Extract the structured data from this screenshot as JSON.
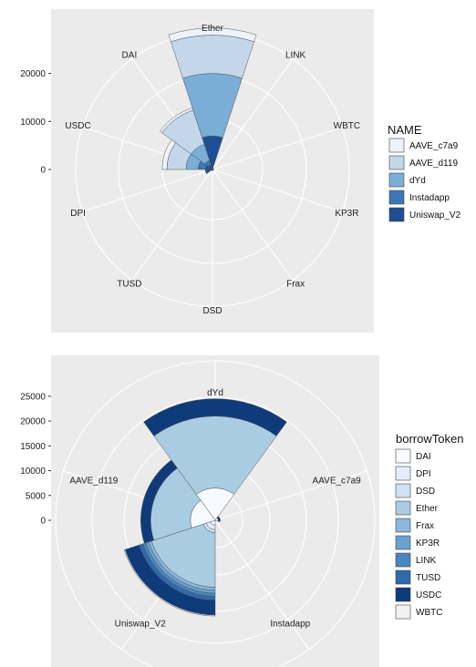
{
  "chart_data": [
    {
      "type": "polar-bar",
      "description_stack": "stacked bars in polar coordinates, one wedge per token",
      "categories": [
        "Ether",
        "LINK",
        "WBTC",
        "KP3R",
        "Frax",
        "DSD",
        "TUSD",
        "DPI",
        "USDC",
        "DAI"
      ],
      "yticks": [
        0,
        10000,
        20000
      ],
      "ymax": 30000,
      "legend_title": "NAME",
      "legend_position": "right",
      "grid": true,
      "series": [
        {
          "name": "Uniswap_V2",
          "color": "#1e4f94",
          "values": [
            7000,
            350,
            250,
            250,
            250,
            250,
            250,
            1500,
            1500,
            1000
          ]
        },
        {
          "name": "Instadapp",
          "color": "#3d76b3",
          "values": [
            0,
            0,
            0,
            0,
            0,
            0,
            0,
            0,
            1500,
            1000
          ]
        },
        {
          "name": "dYd",
          "color": "#7aaed6",
          "values": [
            13000,
            0,
            0,
            0,
            0,
            0,
            0,
            0,
            2500,
            3500
          ]
        },
        {
          "name": "AAVE_d119",
          "color": "#c3d6ea",
          "values": [
            8000,
            0,
            0,
            0,
            0,
            0,
            0,
            0,
            4000,
            7500
          ]
        },
        {
          "name": "AAVE_c7a9",
          "color": "#eef3fb",
          "values": [
            1500,
            0,
            0,
            0,
            0,
            0,
            0,
            0,
            1000,
            500
          ]
        }
      ]
    },
    {
      "type": "polar-bar",
      "description_stack": "stacked bars in polar coordinates, one wedge per protocol",
      "categories": [
        "dYd",
        "AAVE_c7a9",
        "Instadapp",
        "Uniswap_V2",
        "AAVE_d119"
      ],
      "yticks": [
        0,
        5000,
        10000,
        15000,
        20000,
        25000
      ],
      "ymax": 27000,
      "legend_title": "borrowToken",
      "legend_position": "right",
      "grid": true,
      "series": [
        {
          "name": "DAI",
          "color": "#f7fbff",
          "values": [
            6500,
            600,
            0,
            1000,
            5000
          ]
        },
        {
          "name": "DPI",
          "color": "#e3eef9",
          "values": [
            0,
            0,
            0,
            900,
            0
          ]
        },
        {
          "name": "DSD",
          "color": "#cfe1f2",
          "values": [
            0,
            0,
            0,
            600,
            0
          ]
        },
        {
          "name": "Ether",
          "color": "#a9cce3",
          "values": [
            14500,
            0,
            0,
            11000,
            8000
          ]
        },
        {
          "name": "Frax",
          "color": "#88b8dc",
          "values": [
            0,
            0,
            0,
            600,
            0
          ]
        },
        {
          "name": "KP3R",
          "color": "#6aa2cf",
          "values": [
            0,
            0,
            0,
            600,
            0
          ]
        },
        {
          "name": "LINK",
          "color": "#4a87c0",
          "values": [
            0,
            0,
            0,
            600,
            0
          ]
        },
        {
          "name": "TUSD",
          "color": "#2f6aab",
          "values": [
            0,
            0,
            0,
            800,
            0
          ]
        },
        {
          "name": "USDC",
          "color": "#0f3b7a",
          "values": [
            3500,
            400,
            0,
            3000,
            2000
          ]
        },
        {
          "name": "WBTC",
          "color": "#f2f2f2",
          "values": [
            0,
            0,
            0,
            200,
            0
          ]
        }
      ]
    }
  ]
}
